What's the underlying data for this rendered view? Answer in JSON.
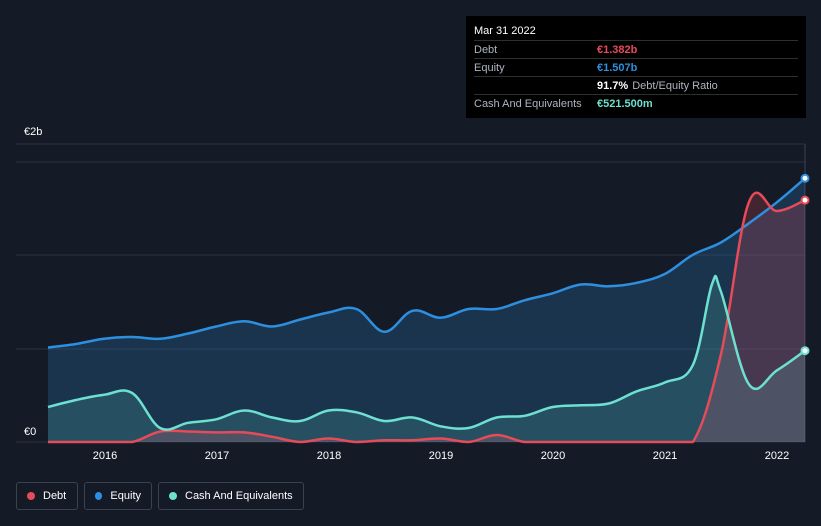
{
  "tooltip": {
    "date": "Mar 31 2022",
    "rows": {
      "debt": {
        "label": "Debt",
        "value": "€1.382b",
        "color": "#e64b5a"
      },
      "equity": {
        "label": "Equity",
        "value": "€1.507b",
        "color": "#2d8fe0"
      },
      "ratio": {
        "value": "91.7%",
        "label": "Debt/Equity Ratio"
      },
      "cash": {
        "label": "Cash And Equivalents",
        "value": "€521.500m",
        "color": "#6de0cf"
      }
    }
  },
  "legend": {
    "debt": "Debt",
    "equity": "Equity",
    "cash": "Cash And Equivalents"
  },
  "chart_data": {
    "type": "area",
    "y_top_label": "€2b",
    "y_bottom_label": "€0",
    "ylim": [
      0,
      1.6
    ],
    "xlim": [
      2015.5,
      2022.25
    ],
    "x_ticks": [
      "2016",
      "2017",
      "2018",
      "2019",
      "2020",
      "2021",
      "2022"
    ],
    "series": [
      {
        "name": "Equity",
        "color": "#2d8fe0",
        "x": [
          2015.5,
          2015.75,
          2016.0,
          2016.25,
          2016.5,
          2016.75,
          2017.0,
          2017.25,
          2017.5,
          2017.75,
          2018.0,
          2018.25,
          2018.5,
          2018.75,
          2019.0,
          2019.25,
          2019.5,
          2019.75,
          2020.0,
          2020.25,
          2020.5,
          2020.75,
          2021.0,
          2021.25,
          2021.5,
          2021.75,
          2022.0,
          2022.25
        ],
        "values": [
          0.54,
          0.56,
          0.59,
          0.6,
          0.59,
          0.62,
          0.66,
          0.69,
          0.66,
          0.7,
          0.74,
          0.76,
          0.63,
          0.75,
          0.71,
          0.76,
          0.76,
          0.81,
          0.85,
          0.9,
          0.89,
          0.91,
          0.96,
          1.07,
          1.14,
          1.25,
          1.37,
          1.507
        ]
      },
      {
        "name": "Debt",
        "color": "#e64b5a",
        "x": [
          2015.5,
          2015.75,
          2016.0,
          2016.25,
          2016.5,
          2016.75,
          2017.0,
          2017.25,
          2017.5,
          2017.75,
          2018.0,
          2018.25,
          2018.5,
          2018.75,
          2019.0,
          2019.25,
          2019.5,
          2019.75,
          2020.0,
          2020.25,
          2020.5,
          2020.75,
          2021.0,
          2021.25,
          2021.5,
          2021.75,
          2022.0,
          2022.25
        ],
        "values": [
          0.0,
          0.0,
          0.0,
          0.0,
          0.06,
          0.06,
          0.055,
          0.055,
          0.03,
          0.0,
          0.02,
          0.0,
          0.01,
          0.01,
          0.02,
          0.0,
          0.04,
          0.0,
          0.0,
          0.0,
          0.0,
          0.0,
          0.0,
          0.0,
          0.5,
          1.37,
          1.32,
          1.382
        ]
      },
      {
        "name": "Cash And Equivalents",
        "color": "#6de0cf",
        "x": [
          2015.5,
          2015.75,
          2016.0,
          2016.25,
          2016.5,
          2016.75,
          2017.0,
          2017.25,
          2017.5,
          2017.75,
          2018.0,
          2018.25,
          2018.5,
          2018.75,
          2019.0,
          2019.25,
          2019.5,
          2019.75,
          2020.0,
          2020.25,
          2020.5,
          2020.75,
          2021.0,
          2021.25,
          2021.42,
          2021.5,
          2021.75,
          2022.0,
          2022.25
        ],
        "values": [
          0.2,
          0.24,
          0.27,
          0.28,
          0.08,
          0.11,
          0.13,
          0.18,
          0.14,
          0.12,
          0.18,
          0.17,
          0.12,
          0.14,
          0.09,
          0.08,
          0.14,
          0.15,
          0.2,
          0.21,
          0.22,
          0.29,
          0.34,
          0.44,
          0.9,
          0.86,
          0.33,
          0.41,
          0.5215
        ]
      }
    ]
  }
}
